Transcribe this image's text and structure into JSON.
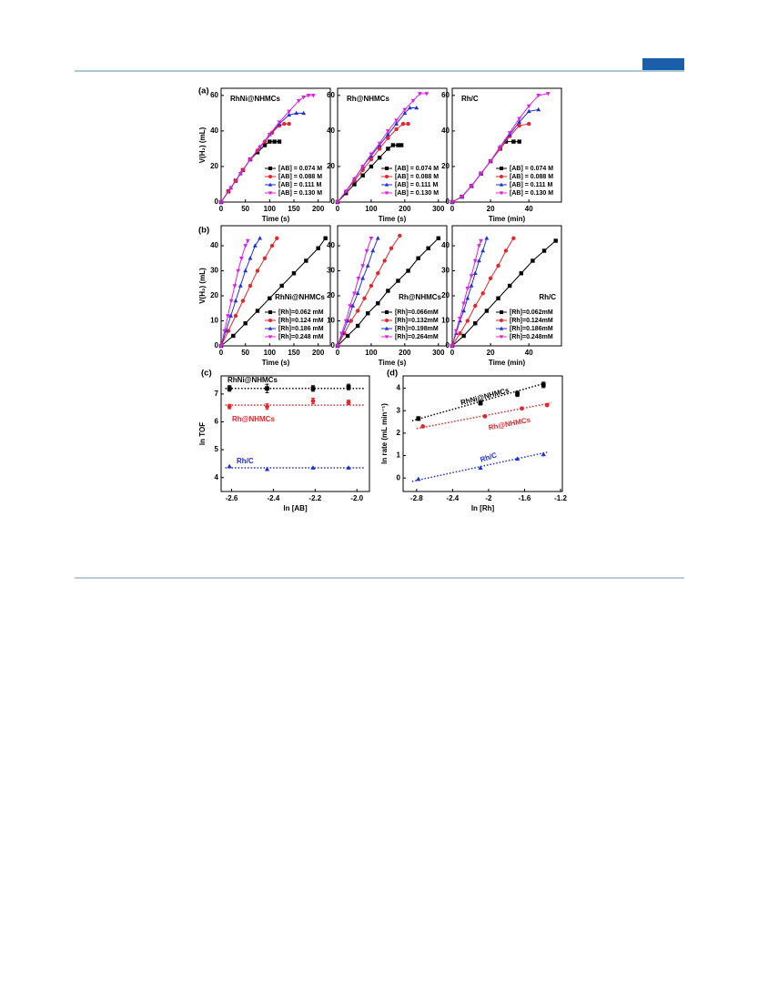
{
  "chart_data": [
    {
      "type": "line",
      "panel_label": "(a)",
      "title": "RhNi@NHMCs",
      "x_label": "Time (s)",
      "y_label": "V(H₂) (mL)",
      "xlim": [
        0,
        225
      ],
      "xticks": [
        0,
        50,
        100,
        150,
        200
      ],
      "ylim": [
        0,
        64
      ],
      "yticks": [
        0,
        20,
        40,
        60
      ],
      "legend": "lower right",
      "series": [
        {
          "name": "[AB] = 0.074 M",
          "color": "#000000",
          "marker": "square",
          "x": [
            0,
            15,
            30,
            45,
            60,
            75,
            90,
            100,
            110,
            120
          ],
          "values": [
            0,
            6,
            12,
            18,
            24,
            28,
            32,
            34,
            34,
            34
          ]
        },
        {
          "name": "[AB] = 0.088 M",
          "color": "#e3262b",
          "marker": "circle",
          "x": [
            0,
            15,
            30,
            45,
            60,
            75,
            90,
            105,
            120,
            130,
            140
          ],
          "values": [
            0,
            6,
            12,
            18,
            24,
            29,
            34,
            39,
            43,
            44,
            44
          ]
        },
        {
          "name": "[AB] = 0.111 M",
          "color": "#1f2fd6",
          "marker": "triangle-up",
          "x": [
            0,
            20,
            40,
            60,
            80,
            100,
            120,
            140,
            155,
            170
          ],
          "values": [
            0,
            8,
            16,
            24,
            31,
            38,
            44,
            49,
            50,
            50
          ]
        },
        {
          "name": "[AB] = 0.130 M",
          "color": "#e020e0",
          "marker": "triangle-down",
          "x": [
            0,
            20,
            40,
            60,
            80,
            100,
            120,
            140,
            160,
            170,
            180,
            190
          ],
          "values": [
            0,
            8,
            16,
            24,
            31,
            38,
            45,
            51,
            57,
            59,
            60,
            60
          ]
        }
      ]
    },
    {
      "type": "line",
      "title": "Rh@NHMCs",
      "x_label": "Time (s)",
      "xlim": [
        0,
        325
      ],
      "xticks": [
        0,
        100,
        200,
        300
      ],
      "ylim": [
        0,
        64
      ],
      "yticks": [
        0,
        20,
        40,
        60
      ],
      "legend": "lower right",
      "series": [
        {
          "name": "[AB] = 0.074 M",
          "color": "#000000",
          "marker": "square",
          "x": [
            0,
            25,
            50,
            75,
            100,
            125,
            150,
            165,
            180,
            190
          ],
          "values": [
            0,
            5,
            10,
            15,
            20,
            25,
            30,
            32,
            32,
            32
          ]
        },
        {
          "name": "[AB] = 0.088 M",
          "color": "#e3262b",
          "marker": "circle",
          "x": [
            0,
            25,
            50,
            75,
            100,
            125,
            150,
            175,
            195,
            210
          ],
          "values": [
            0,
            6,
            12,
            18,
            24,
            30,
            36,
            41,
            44,
            44
          ]
        },
        {
          "name": "[AB] = 0.111 M",
          "color": "#1f2fd6",
          "marker": "triangle-up",
          "x": [
            0,
            25,
            50,
            75,
            100,
            125,
            150,
            175,
            200,
            215,
            235
          ],
          "values": [
            0,
            6,
            13,
            20,
            26,
            32,
            38,
            44,
            50,
            53,
            53
          ]
        },
        {
          "name": "[AB] = 0.130 M",
          "color": "#e020e0",
          "marker": "triangle-down",
          "x": [
            0,
            25,
            50,
            75,
            100,
            125,
            150,
            175,
            200,
            225,
            245,
            265
          ],
          "values": [
            0,
            6,
            13,
            20,
            27,
            33,
            40,
            46,
            52,
            57,
            61,
            61
          ]
        }
      ]
    },
    {
      "type": "line",
      "title": "Rh/C",
      "x_label": "Time (min)",
      "xlim": [
        0,
        57
      ],
      "xticks": [
        0,
        20,
        40
      ],
      "ylim": [
        0,
        64
      ],
      "yticks": [
        0,
        20,
        40,
        60
      ],
      "legend": "lower right",
      "series": [
        {
          "name": "[AB] = 0.074 M",
          "color": "#000000",
          "marker": "square",
          "x": [
            0,
            5,
            10,
            15,
            20,
            25,
            28,
            32,
            35
          ],
          "values": [
            0,
            3,
            9,
            16,
            23,
            30,
            34,
            34,
            34
          ]
        },
        {
          "name": "[AB] = 0.088 M",
          "color": "#e3262b",
          "marker": "circle",
          "x": [
            0,
            5,
            10,
            15,
            20,
            25,
            30,
            35,
            40
          ],
          "values": [
            0,
            3,
            9,
            16,
            23,
            30,
            37,
            43,
            44
          ]
        },
        {
          "name": "[AB] = 0.111 M",
          "color": "#1f2fd6",
          "marker": "triangle-up",
          "x": [
            0,
            5,
            10,
            15,
            20,
            25,
            30,
            35,
            40,
            45
          ],
          "values": [
            0,
            3,
            9,
            16,
            23,
            31,
            38,
            45,
            51,
            52
          ]
        },
        {
          "name": "[AB] = 0.130 M",
          "color": "#e020e0",
          "marker": "triangle-down",
          "x": [
            0,
            5,
            10,
            15,
            20,
            25,
            30,
            35,
            40,
            45,
            50
          ],
          "values": [
            0,
            3,
            9,
            16,
            23,
            31,
            39,
            47,
            54,
            60,
            61
          ]
        }
      ]
    },
    {
      "type": "line",
      "panel_label": "(b)",
      "title": "RhNi@NHMCs",
      "x_label": "Time (s)",
      "y_label": "V(H₂) (mL)",
      "xlim": [
        0,
        225
      ],
      "xticks": [
        0,
        50,
        100,
        150,
        200
      ],
      "ylim": [
        0,
        48
      ],
      "yticks": [
        0,
        10,
        20,
        30,
        40
      ],
      "legend": "lower right",
      "series": [
        {
          "name": "[Rh]=0.062 mM",
          "color": "#000000",
          "marker": "square",
          "x": [
            0,
            25,
            50,
            75,
            100,
            125,
            150,
            175,
            200,
            215
          ],
          "values": [
            0,
            4,
            9,
            14,
            19,
            24,
            29,
            34,
            39,
            43
          ]
        },
        {
          "name": "[Rh]=0.124 mM",
          "color": "#e3262b",
          "marker": "circle",
          "x": [
            0,
            15,
            30,
            45,
            60,
            75,
            90,
            105,
            115
          ],
          "values": [
            0,
            6,
            12,
            18,
            24,
            30,
            35,
            40,
            43
          ]
        },
        {
          "name": "[Rh]=0.186 mM",
          "color": "#1f2fd6",
          "marker": "triangle-up",
          "x": [
            0,
            10,
            20,
            30,
            40,
            50,
            60,
            70,
            80
          ],
          "values": [
            0,
            6,
            12,
            18,
            24,
            30,
            35,
            40,
            43
          ]
        },
        {
          "name": "[Rh]=0.248 mM",
          "color": "#e020e0",
          "marker": "triangle-down",
          "x": [
            0,
            7,
            14,
            21,
            28,
            35,
            42,
            50,
            55
          ],
          "values": [
            0,
            6,
            12,
            18,
            24,
            30,
            35,
            40,
            42
          ]
        }
      ]
    },
    {
      "type": "line",
      "title": "Rh@NHMCs",
      "x_label": "Time (s)",
      "xlim": [
        0,
        325
      ],
      "xticks": [
        0,
        100,
        200,
        300
      ],
      "ylim": [
        0,
        48
      ],
      "yticks": [
        0,
        10,
        20,
        30,
        40
      ],
      "legend": "lower right",
      "series": [
        {
          "name": "[Rh]=0.066mM",
          "color": "#000000",
          "marker": "square",
          "x": [
            0,
            30,
            60,
            90,
            120,
            150,
            180,
            210,
            240,
            270,
            300
          ],
          "values": [
            0,
            4,
            8,
            13,
            17,
            22,
            26,
            30,
            35,
            39,
            43
          ]
        },
        {
          "name": "[Rh]=0.132mM",
          "color": "#e3262b",
          "marker": "circle",
          "x": [
            0,
            20,
            40,
            60,
            80,
            100,
            120,
            140,
            160,
            185
          ],
          "values": [
            0,
            5,
            10,
            14,
            19,
            24,
            29,
            34,
            39,
            44
          ]
        },
        {
          "name": "[Rh]=0.198mM",
          "color": "#1f2fd6",
          "marker": "triangle-up",
          "x": [
            0,
            15,
            30,
            45,
            60,
            75,
            90,
            105,
            120
          ],
          "values": [
            0,
            5,
            10,
            16,
            21,
            27,
            32,
            38,
            43
          ]
        },
        {
          "name": "[Rh]=0.264mM",
          "color": "#e020e0",
          "marker": "triangle-down",
          "x": [
            0,
            12,
            25,
            37,
            50,
            62,
            75,
            87,
            100
          ],
          "values": [
            0,
            5,
            10,
            16,
            21,
            27,
            32,
            38,
            43
          ]
        }
      ]
    },
    {
      "type": "line",
      "title": "Rh/C",
      "x_label": "Time (min)",
      "xlim": [
        0,
        57
      ],
      "xticks": [
        0,
        20,
        40
      ],
      "ylim": [
        0,
        48
      ],
      "yticks": [
        0,
        10,
        20,
        30,
        40
      ],
      "legend": "lower right",
      "series": [
        {
          "name": "[Rh]=0.062mM",
          "color": "#000000",
          "marker": "square",
          "x": [
            0,
            6,
            12,
            18,
            24,
            30,
            36,
            42,
            48,
            54
          ],
          "values": [
            0,
            4,
            9,
            14,
            19,
            24,
            29,
            34,
            38,
            42
          ]
        },
        {
          "name": "[Rh]=0.124mM",
          "color": "#e3262b",
          "marker": "circle",
          "x": [
            0,
            4,
            8,
            12,
            16,
            20,
            24,
            28,
            32
          ],
          "values": [
            0,
            5,
            10,
            16,
            21,
            27,
            32,
            38,
            43
          ]
        },
        {
          "name": "[Rh]=0.186mM",
          "color": "#1f2fd6",
          "marker": "triangle-up",
          "x": [
            0,
            2,
            4,
            6,
            8,
            10,
            12,
            14,
            16,
            18
          ],
          "values": [
            0,
            5,
            10,
            14,
            19,
            24,
            29,
            34,
            38,
            43
          ]
        },
        {
          "name": "[Rh]=0.248mM",
          "color": "#e020e0",
          "marker": "triangle-down",
          "x": [
            0,
            2,
            4,
            6,
            8,
            10,
            12,
            14,
            15
          ],
          "values": [
            0,
            6,
            11,
            17,
            23,
            28,
            34,
            40,
            42
          ]
        }
      ]
    },
    {
      "type": "scatter",
      "panel_label": "(c)",
      "x_label": "ln [AB]",
      "y_label": "ln TOF",
      "xlim": [
        -2.65,
        -1.94
      ],
      "xticks": [
        -2.6,
        -2.4,
        -2.2,
        {
          "value": -2,
          "label": "-2.0"
        }
      ],
      "ylim": [
        3.5,
        7.65
      ],
      "yticks": [
        4,
        5,
        6,
        7
      ],
      "series": [
        {
          "name": "RhNi@NHMCs",
          "color": "#000000",
          "marker": "square",
          "x": [
            -2.61,
            -2.43,
            -2.21,
            -2.04
          ],
          "values": [
            7.2,
            7.2,
            7.2,
            7.25
          ],
          "errors": [
            0.1,
            0.15,
            0.1,
            0.1
          ],
          "fit_x": [
            -2.63,
            -1.96
          ],
          "fit_y": [
            7.2,
            7.2
          ]
        },
        {
          "name": "Rh@NHMCs",
          "color": "#e3262b",
          "marker": "circle",
          "x": [
            -2.61,
            -2.43,
            -2.21,
            -2.04
          ],
          "values": [
            6.55,
            6.55,
            6.75,
            6.7
          ],
          "errors": [
            0.08,
            0.1,
            0.1,
            0.08
          ],
          "fit_x": [
            -2.63,
            -1.96
          ],
          "fit_y": [
            6.6,
            6.6
          ]
        },
        {
          "name": "Rh/C",
          "color": "#1f2fd6",
          "marker": "triangle-up",
          "x": [
            -2.61,
            -2.43,
            -2.21,
            -2.04
          ],
          "values": [
            4.4,
            4.3,
            4.35,
            4.35
          ],
          "fit_x": [
            -2.63,
            -1.96
          ],
          "fit_y": [
            4.35,
            4.35
          ]
        }
      ]
    },
    {
      "type": "scatter",
      "panel_label": "(d)",
      "x_label": "ln [Rh]",
      "y_label": "ln rate (mL min⁻¹)",
      "xlim": [
        -2.95,
        -1.18
      ],
      "xticks": [
        -2.8,
        -2.4,
        -2,
        -1.6,
        -1.2
      ],
      "ylim": [
        -0.6,
        4.55
      ],
      "yticks": [
        0,
        1,
        2,
        3,
        4
      ],
      "series": [
        {
          "name": "RhNi@NHMCs",
          "color": "#000000",
          "marker": "square",
          "x": [
            -2.78,
            -2.09,
            -1.68,
            -1.39
          ],
          "values": [
            2.65,
            3.35,
            3.75,
            4.15
          ],
          "errors": [
            0.08,
            0.1,
            0.12,
            0.12
          ],
          "fit_x": [
            -2.85,
            -1.35
          ],
          "fit_y": [
            2.55,
            4.25
          ]
        },
        {
          "name": "Rh@NHMCs",
          "color": "#e3262b",
          "marker": "circle",
          "x": [
            -2.73,
            -2.04,
            -1.63,
            -1.35
          ],
          "values": [
            2.3,
            2.75,
            3.1,
            3.25
          ],
          "fit_x": [
            -2.8,
            -1.3
          ],
          "fit_y": [
            2.2,
            3.35
          ]
        },
        {
          "name": "Rh/C",
          "color": "#1f2fd6",
          "marker": "triangle-up",
          "x": [
            -2.78,
            -2.09,
            -1.68,
            -1.39
          ],
          "values": [
            -0.05,
            0.45,
            0.85,
            1.05
          ],
          "fit_x": [
            -2.85,
            -1.35
          ],
          "fit_y": [
            -0.15,
            1.15
          ]
        }
      ]
    }
  ]
}
